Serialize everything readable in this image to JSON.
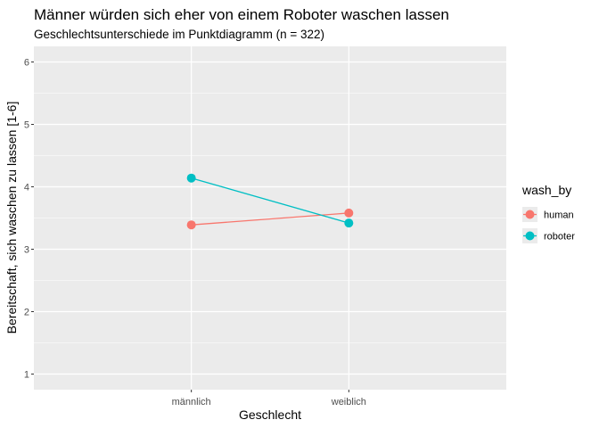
{
  "chart_data": {
    "type": "line",
    "title": "Männer würden sich eher von einem Roboter waschen lassen",
    "subtitle": "Geschlechtsunterschiede im Punktdiagramm (n = 322)",
    "xlabel": "Geschlecht",
    "ylabel": "Bereitschaft, sich waschen zu lassen [1-6]",
    "categories": [
      "männlich",
      "weiblich"
    ],
    "ylim": [
      0.75,
      6.25
    ],
    "yticks": [
      1,
      2,
      3,
      4,
      5,
      6
    ],
    "grid": true,
    "legend": {
      "title": "wash_by",
      "placement": "right"
    },
    "series": [
      {
        "name": "human",
        "color": "#F8766D",
        "values": [
          3.39,
          3.58
        ]
      },
      {
        "name": "roboter",
        "color": "#00BFC4",
        "values": [
          4.14,
          3.42
        ]
      }
    ]
  }
}
